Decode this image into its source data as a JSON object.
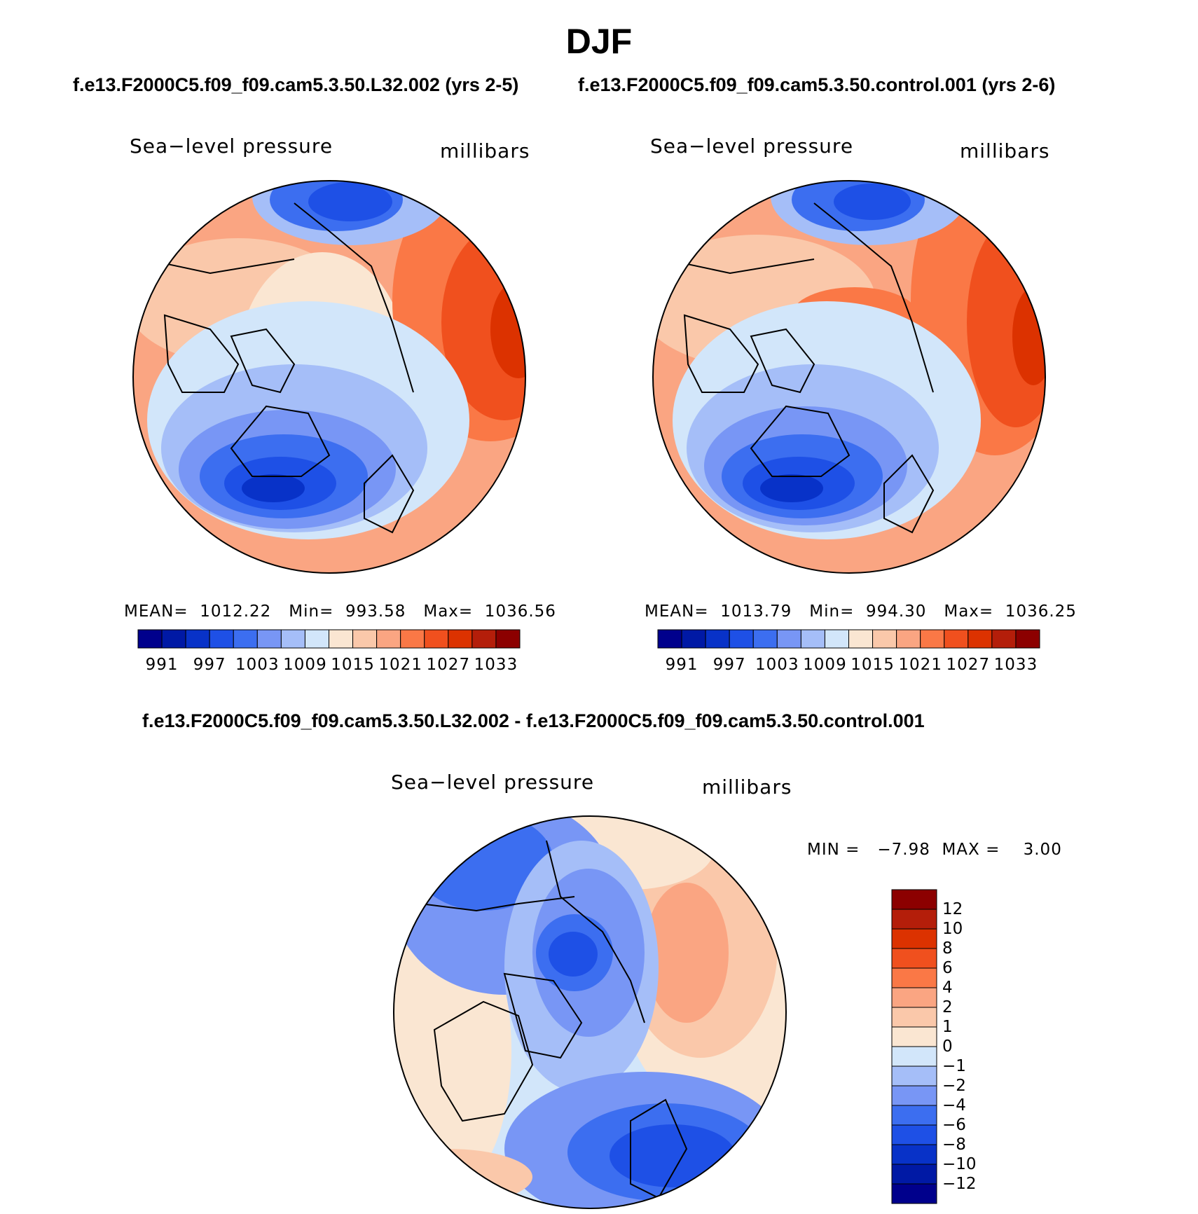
{
  "title": "DJF",
  "panels": [
    {
      "header": "f.e13.F2000C5.f09_f09.cam5.3.50.L32.002 (yrs 2-5)",
      "variable": "Sea−level pressure",
      "units": "millibars",
      "stats": "MEAN=  1012.22   Min=  993.58   Max=  1036.56"
    },
    {
      "header": "f.e13.F2000C5.f09_f09.cam5.3.50.control.001 (yrs 2-6)",
      "variable": "Sea−level pressure",
      "units": "millibars",
      "stats": "MEAN=  1013.79   Min=  994.30   Max=  1036.25"
    },
    {
      "header": "f.e13.F2000C5.f09_f09.cam5.3.50.L32.002 - f.e13.F2000C5.f09_f09.cam5.3.50.control.001",
      "variable": "Sea−level pressure",
      "units": "millibars",
      "stats": "MIN =   −7.98  MAX =    3.00"
    }
  ],
  "abs_colorbar": {
    "colors": [
      "#00008c",
      "#0019a5",
      "#0832c8",
      "#1e50e6",
      "#3c6ef0",
      "#7896f5",
      "#a5bef8",
      "#d2e6fa",
      "#fae6d2",
      "#fac8aa",
      "#faa582",
      "#fa7846",
      "#f0501e",
      "#dc3200",
      "#b41e0a",
      "#8c0000"
    ],
    "tick_labels": [
      "991",
      "997",
      "1003",
      "1009",
      "1015",
      "1021",
      "1027",
      "1033"
    ]
  },
  "diff_colorbar": {
    "colors": [
      "#8c0000",
      "#b41e0a",
      "#dc3200",
      "#f0501e",
      "#fa7846",
      "#faa582",
      "#fac8aa",
      "#fae6d2",
      "#d2e6fa",
      "#a5bef8",
      "#7896f5",
      "#3c6ef0",
      "#1e50e6",
      "#0832c8",
      "#0019a5",
      "#00008c"
    ],
    "tick_labels": [
      "12",
      "10",
      "8",
      "6",
      "4",
      "2",
      "1",
      "0",
      "−1",
      "−2",
      "−4",
      "−6",
      "−8",
      "−10",
      "−12"
    ]
  }
}
